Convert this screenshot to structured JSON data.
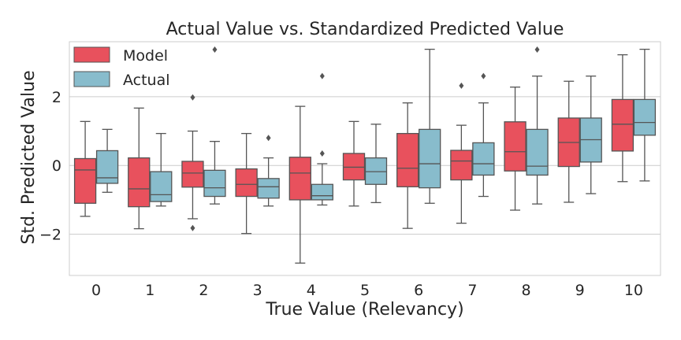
{
  "chart_data": {
    "type": "box",
    "title": "Actual Value vs. Standardized Predicted Value",
    "xlabel": "True Value (Relevancy)",
    "ylabel": "Std. Predicted Value",
    "categories": [
      "0",
      "1",
      "2",
      "3",
      "4",
      "5",
      "6",
      "7",
      "8",
      "9",
      "10"
    ],
    "ylim": [
      -3.2,
      3.6
    ],
    "yticks": [
      -2,
      0,
      2
    ],
    "ytick_labels": [
      "−2",
      "0",
      "2"
    ],
    "grid": true,
    "legend_position": "top-left",
    "colors": {
      "Model": "#e8515d",
      "Actual": "#88bccc",
      "edge": "#555555",
      "grid": "#cccccc",
      "frame": "#cccccc"
    },
    "series": [
      {
        "name": "Model",
        "boxes": [
          {
            "min": -1.48,
            "q1": -1.1,
            "median": -0.13,
            "q3": 0.2,
            "max": 1.28,
            "outliers": []
          },
          {
            "min": -1.84,
            "q1": -1.2,
            "median": -0.68,
            "q3": 0.22,
            "max": 1.67,
            "outliers": []
          },
          {
            "min": -1.55,
            "q1": -0.63,
            "median": -0.22,
            "q3": 0.12,
            "max": 1.0,
            "outliers": [
              -1.82,
              1.98
            ]
          },
          {
            "min": -1.98,
            "q1": -0.9,
            "median": -0.55,
            "q3": -0.1,
            "max": 0.93,
            "outliers": []
          },
          {
            "min": -2.84,
            "q1": -1.0,
            "median": -0.22,
            "q3": 0.24,
            "max": 1.72,
            "outliers": []
          },
          {
            "min": -1.18,
            "q1": -0.42,
            "median": -0.05,
            "q3": 0.35,
            "max": 1.28,
            "outliers": []
          },
          {
            "min": -1.83,
            "q1": -0.62,
            "median": -0.08,
            "q3": 0.93,
            "max": 1.82,
            "outliers": []
          },
          {
            "min": -1.68,
            "q1": -0.42,
            "median": 0.13,
            "q3": 0.44,
            "max": 1.17,
            "outliers": [
              2.32
            ]
          },
          {
            "min": -1.3,
            "q1": -0.16,
            "median": 0.4,
            "q3": 1.27,
            "max": 2.28,
            "outliers": []
          },
          {
            "min": -1.07,
            "q1": -0.03,
            "median": 0.67,
            "q3": 1.38,
            "max": 2.45,
            "outliers": []
          },
          {
            "min": -0.47,
            "q1": 0.42,
            "median": 1.2,
            "q3": 1.92,
            "max": 3.22,
            "outliers": []
          }
        ]
      },
      {
        "name": "Actual",
        "boxes": [
          {
            "min": -0.78,
            "q1": -0.52,
            "median": -0.36,
            "q3": 0.43,
            "max": 1.05,
            "outliers": []
          },
          {
            "min": -1.18,
            "q1": -1.05,
            "median": -0.85,
            "q3": -0.18,
            "max": 0.93,
            "outliers": []
          },
          {
            "min": -1.12,
            "q1": -0.9,
            "median": -0.65,
            "q3": -0.14,
            "max": 0.7,
            "outliers": [
              3.37
            ]
          },
          {
            "min": -1.18,
            "q1": -0.95,
            "median": -0.62,
            "q3": -0.38,
            "max": 0.22,
            "outliers": [
              0.8
            ]
          },
          {
            "min": -1.15,
            "q1": -1.0,
            "median": -0.88,
            "q3": -0.55,
            "max": 0.05,
            "outliers": [
              0.35,
              2.6
            ]
          },
          {
            "min": -1.08,
            "q1": -0.55,
            "median": -0.18,
            "q3": 0.22,
            "max": 1.2,
            "outliers": []
          },
          {
            "min": -1.1,
            "q1": -0.65,
            "median": 0.05,
            "q3": 1.05,
            "max": 3.38,
            "outliers": []
          },
          {
            "min": -0.9,
            "q1": -0.28,
            "median": 0.05,
            "q3": 0.66,
            "max": 1.82,
            "outliers": [
              2.6
            ]
          },
          {
            "min": -1.12,
            "q1": -0.28,
            "median": -0.02,
            "q3": 1.05,
            "max": 2.6,
            "outliers": [
              3.37
            ]
          },
          {
            "min": -0.82,
            "q1": 0.1,
            "median": 0.75,
            "q3": 1.38,
            "max": 2.6,
            "outliers": []
          },
          {
            "min": -0.45,
            "q1": 0.88,
            "median": 1.25,
            "q3": 1.92,
            "max": 3.38,
            "outliers": []
          }
        ]
      }
    ]
  }
}
